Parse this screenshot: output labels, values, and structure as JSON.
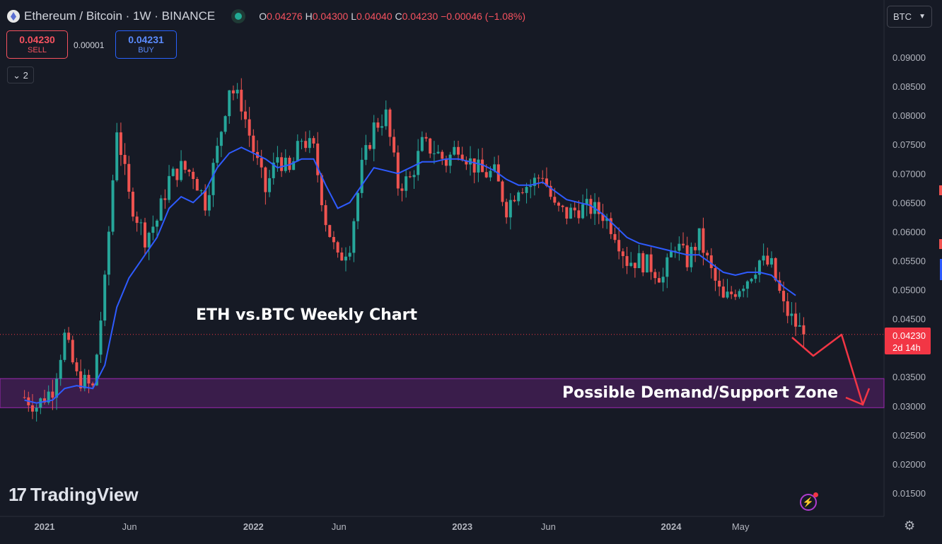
{
  "header": {
    "symbol_title": "Ethereum / Bitcoin · 1W · BINANCE",
    "ohlc": {
      "o_label": "O",
      "o": "0.04276",
      "h_label": "H",
      "h": "0.04300",
      "l_label": "L",
      "l": "0.04040",
      "c_label": "C",
      "c": "0.04230",
      "change": "−0.00046 (−1.08%)"
    }
  },
  "trade": {
    "sell_price": "0.04230",
    "sell_label": "SELL",
    "spread": "0.00001",
    "buy_price": "0.04231",
    "buy_label": "BUY"
  },
  "indicator_toggle": "2",
  "currency": "BTC",
  "logo_text": "TradingView",
  "colors": {
    "up": "#26a69a",
    "down": "#ef5350",
    "ma": "#2e5bff",
    "zone": "#9c27b0",
    "annotation": "#f23645",
    "price_tag": "#f23645"
  },
  "chart_data": {
    "type": "candlestick",
    "title": "",
    "annotation_title": "ETH vs.BTC Weekly Chart",
    "zone_label": "Possible Demand/Support Zone",
    "zone": [
      0.0297,
      0.0347
    ],
    "ylim": [
      0.0125,
      0.0935
    ],
    "y_ticks": [
      "0.09000",
      "0.08500",
      "0.08000",
      "0.07500",
      "0.07000",
      "0.06500",
      "0.06000",
      "0.05500",
      "0.05000",
      "0.04500",
      "0.03500",
      "0.03000",
      "0.02500",
      "0.02000",
      "0.01500"
    ],
    "x_ticks": [
      {
        "label": "2021",
        "date": "2021-01-04",
        "bold": true
      },
      {
        "label": "Jun",
        "date": "2021-06-01",
        "bold": false
      },
      {
        "label": "2022",
        "date": "2022-01-03",
        "bold": true
      },
      {
        "label": "Jun",
        "date": "2022-06-01",
        "bold": false
      },
      {
        "label": "2023",
        "date": "2023-01-02",
        "bold": true
      },
      {
        "label": "Jun",
        "date": "2023-06-01",
        "bold": false
      },
      {
        "label": "2024",
        "date": "2024-01-01",
        "bold": true
      },
      {
        "label": "May",
        "date": "2024-05-01",
        "bold": false
      }
    ],
    "last_price": "0.04230",
    "countdown": "2d 14h",
    "series": [
      {
        "name": "",
        "kind": "close",
        "points": [
          [
            "2020-11-30",
            0.0315
          ],
          [
            "2020-12-21",
            0.03
          ],
          [
            "2021-01-18",
            0.033
          ],
          [
            "2021-02-08",
            0.042
          ],
          [
            "2021-03-01",
            0.035
          ],
          [
            "2021-03-29",
            0.033
          ],
          [
            "2021-04-19",
            0.051
          ],
          [
            "2021-05-10",
            0.078
          ],
          [
            "2021-05-31",
            0.066
          ],
          [
            "2021-06-28",
            0.059
          ],
          [
            "2021-07-19",
            0.062
          ],
          [
            "2021-08-09",
            0.069
          ],
          [
            "2021-08-30",
            0.071
          ],
          [
            "2021-09-20",
            0.07
          ],
          [
            "2021-10-11",
            0.065
          ],
          [
            "2021-11-01",
            0.074
          ],
          [
            "2021-11-22",
            0.085
          ],
          [
            "2021-12-13",
            0.082
          ],
          [
            "2022-01-03",
            0.074
          ],
          [
            "2022-01-24",
            0.067
          ],
          [
            "2022-02-14",
            0.073
          ],
          [
            "2022-03-07",
            0.07
          ],
          [
            "2022-03-28",
            0.076
          ],
          [
            "2022-04-18",
            0.074
          ],
          [
            "2022-05-09",
            0.062
          ],
          [
            "2022-05-30",
            0.055
          ],
          [
            "2022-06-20",
            0.058
          ],
          [
            "2022-07-11",
            0.071
          ],
          [
            "2022-08-01",
            0.078
          ],
          [
            "2022-08-22",
            0.08
          ],
          [
            "2022-09-12",
            0.068
          ],
          [
            "2022-10-03",
            0.069
          ],
          [
            "2022-10-24",
            0.075
          ],
          [
            "2022-11-14",
            0.074
          ],
          [
            "2022-12-05",
            0.072
          ],
          [
            "2022-12-26",
            0.075
          ],
          [
            "2023-01-16",
            0.072
          ],
          [
            "2023-02-06",
            0.07
          ],
          [
            "2023-02-27",
            0.07
          ],
          [
            "2023-03-20",
            0.064
          ],
          [
            "2023-04-10",
            0.068
          ],
          [
            "2023-05-01",
            0.068
          ],
          [
            "2023-05-22",
            0.07
          ],
          [
            "2023-06-12",
            0.064
          ],
          [
            "2023-07-03",
            0.063
          ],
          [
            "2023-07-24",
            0.064
          ],
          [
            "2023-08-14",
            0.064
          ],
          [
            "2023-09-04",
            0.063
          ],
          [
            "2023-09-25",
            0.06
          ],
          [
            "2023-10-16",
            0.055
          ],
          [
            "2023-11-06",
            0.055
          ],
          [
            "2023-11-27",
            0.054
          ],
          [
            "2023-12-18",
            0.052
          ],
          [
            "2024-01-08",
            0.058
          ],
          [
            "2024-01-29",
            0.055
          ],
          [
            "2024-02-19",
            0.059
          ],
          [
            "2024-03-11",
            0.053
          ],
          [
            "2024-04-01",
            0.048
          ],
          [
            "2024-04-22",
            0.05
          ],
          [
            "2024-05-13",
            0.052
          ],
          [
            "2024-06-03",
            0.055
          ],
          [
            "2024-06-24",
            0.054
          ],
          [
            "2024-07-15",
            0.047
          ],
          [
            "2024-08-05",
            0.044
          ],
          [
            "2024-08-19",
            0.0423
          ]
        ]
      },
      {
        "name": "",
        "kind": "moving_average",
        "points": [
          [
            "2020-11-30",
            0.031
          ],
          [
            "2020-12-21",
            0.0305
          ],
          [
            "2021-01-18",
            0.031
          ],
          [
            "2021-02-08",
            0.033
          ],
          [
            "2021-03-01",
            0.0335
          ],
          [
            "2021-03-29",
            0.033
          ],
          [
            "2021-04-19",
            0.037
          ],
          [
            "2021-05-10",
            0.047
          ],
          [
            "2021-05-31",
            0.052
          ],
          [
            "2021-06-28",
            0.056
          ],
          [
            "2021-07-19",
            0.059
          ],
          [
            "2021-08-09",
            0.064
          ],
          [
            "2021-08-30",
            0.066
          ],
          [
            "2021-09-20",
            0.065
          ],
          [
            "2021-10-11",
            0.067
          ],
          [
            "2021-11-01",
            0.071
          ],
          [
            "2021-11-22",
            0.0735
          ],
          [
            "2021-12-13",
            0.0745
          ],
          [
            "2022-01-03",
            0.0735
          ],
          [
            "2022-01-24",
            0.0725
          ],
          [
            "2022-02-14",
            0.071
          ],
          [
            "2022-03-07",
            0.0715
          ],
          [
            "2022-03-28",
            0.0725
          ],
          [
            "2022-04-18",
            0.0725
          ],
          [
            "2022-05-09",
            0.068
          ],
          [
            "2022-05-30",
            0.064
          ],
          [
            "2022-06-20",
            0.065
          ],
          [
            "2022-07-11",
            0.068
          ],
          [
            "2022-08-01",
            0.071
          ],
          [
            "2022-08-22",
            0.0705
          ],
          [
            "2022-09-12",
            0.07
          ],
          [
            "2022-10-03",
            0.071
          ],
          [
            "2022-10-24",
            0.072
          ],
          [
            "2022-11-14",
            0.072
          ],
          [
            "2022-12-05",
            0.0725
          ],
          [
            "2022-12-26",
            0.0725
          ],
          [
            "2023-01-16",
            0.072
          ],
          [
            "2023-02-06",
            0.0715
          ],
          [
            "2023-02-27",
            0.0705
          ],
          [
            "2023-03-20",
            0.069
          ],
          [
            "2023-04-10",
            0.068
          ],
          [
            "2023-05-01",
            0.068
          ],
          [
            "2023-05-22",
            0.0685
          ],
          [
            "2023-06-12",
            0.067
          ],
          [
            "2023-07-03",
            0.0655
          ],
          [
            "2023-07-24",
            0.065
          ],
          [
            "2023-08-14",
            0.0645
          ],
          [
            "2023-09-04",
            0.063
          ],
          [
            "2023-09-25",
            0.061
          ],
          [
            "2023-10-16",
            0.059
          ],
          [
            "2023-11-06",
            0.058
          ],
          [
            "2023-11-27",
            0.0575
          ],
          [
            "2023-12-18",
            0.057
          ],
          [
            "2024-01-08",
            0.0565
          ],
          [
            "2024-01-29",
            0.056
          ],
          [
            "2024-02-19",
            0.056
          ],
          [
            "2024-03-11",
            0.0545
          ],
          [
            "2024-04-01",
            0.053
          ],
          [
            "2024-04-22",
            0.0525
          ],
          [
            "2024-05-13",
            0.053
          ],
          [
            "2024-06-03",
            0.053
          ],
          [
            "2024-06-24",
            0.0525
          ],
          [
            "2024-07-15",
            0.0505
          ],
          [
            "2024-08-05",
            0.049
          ]
        ]
      }
    ]
  }
}
